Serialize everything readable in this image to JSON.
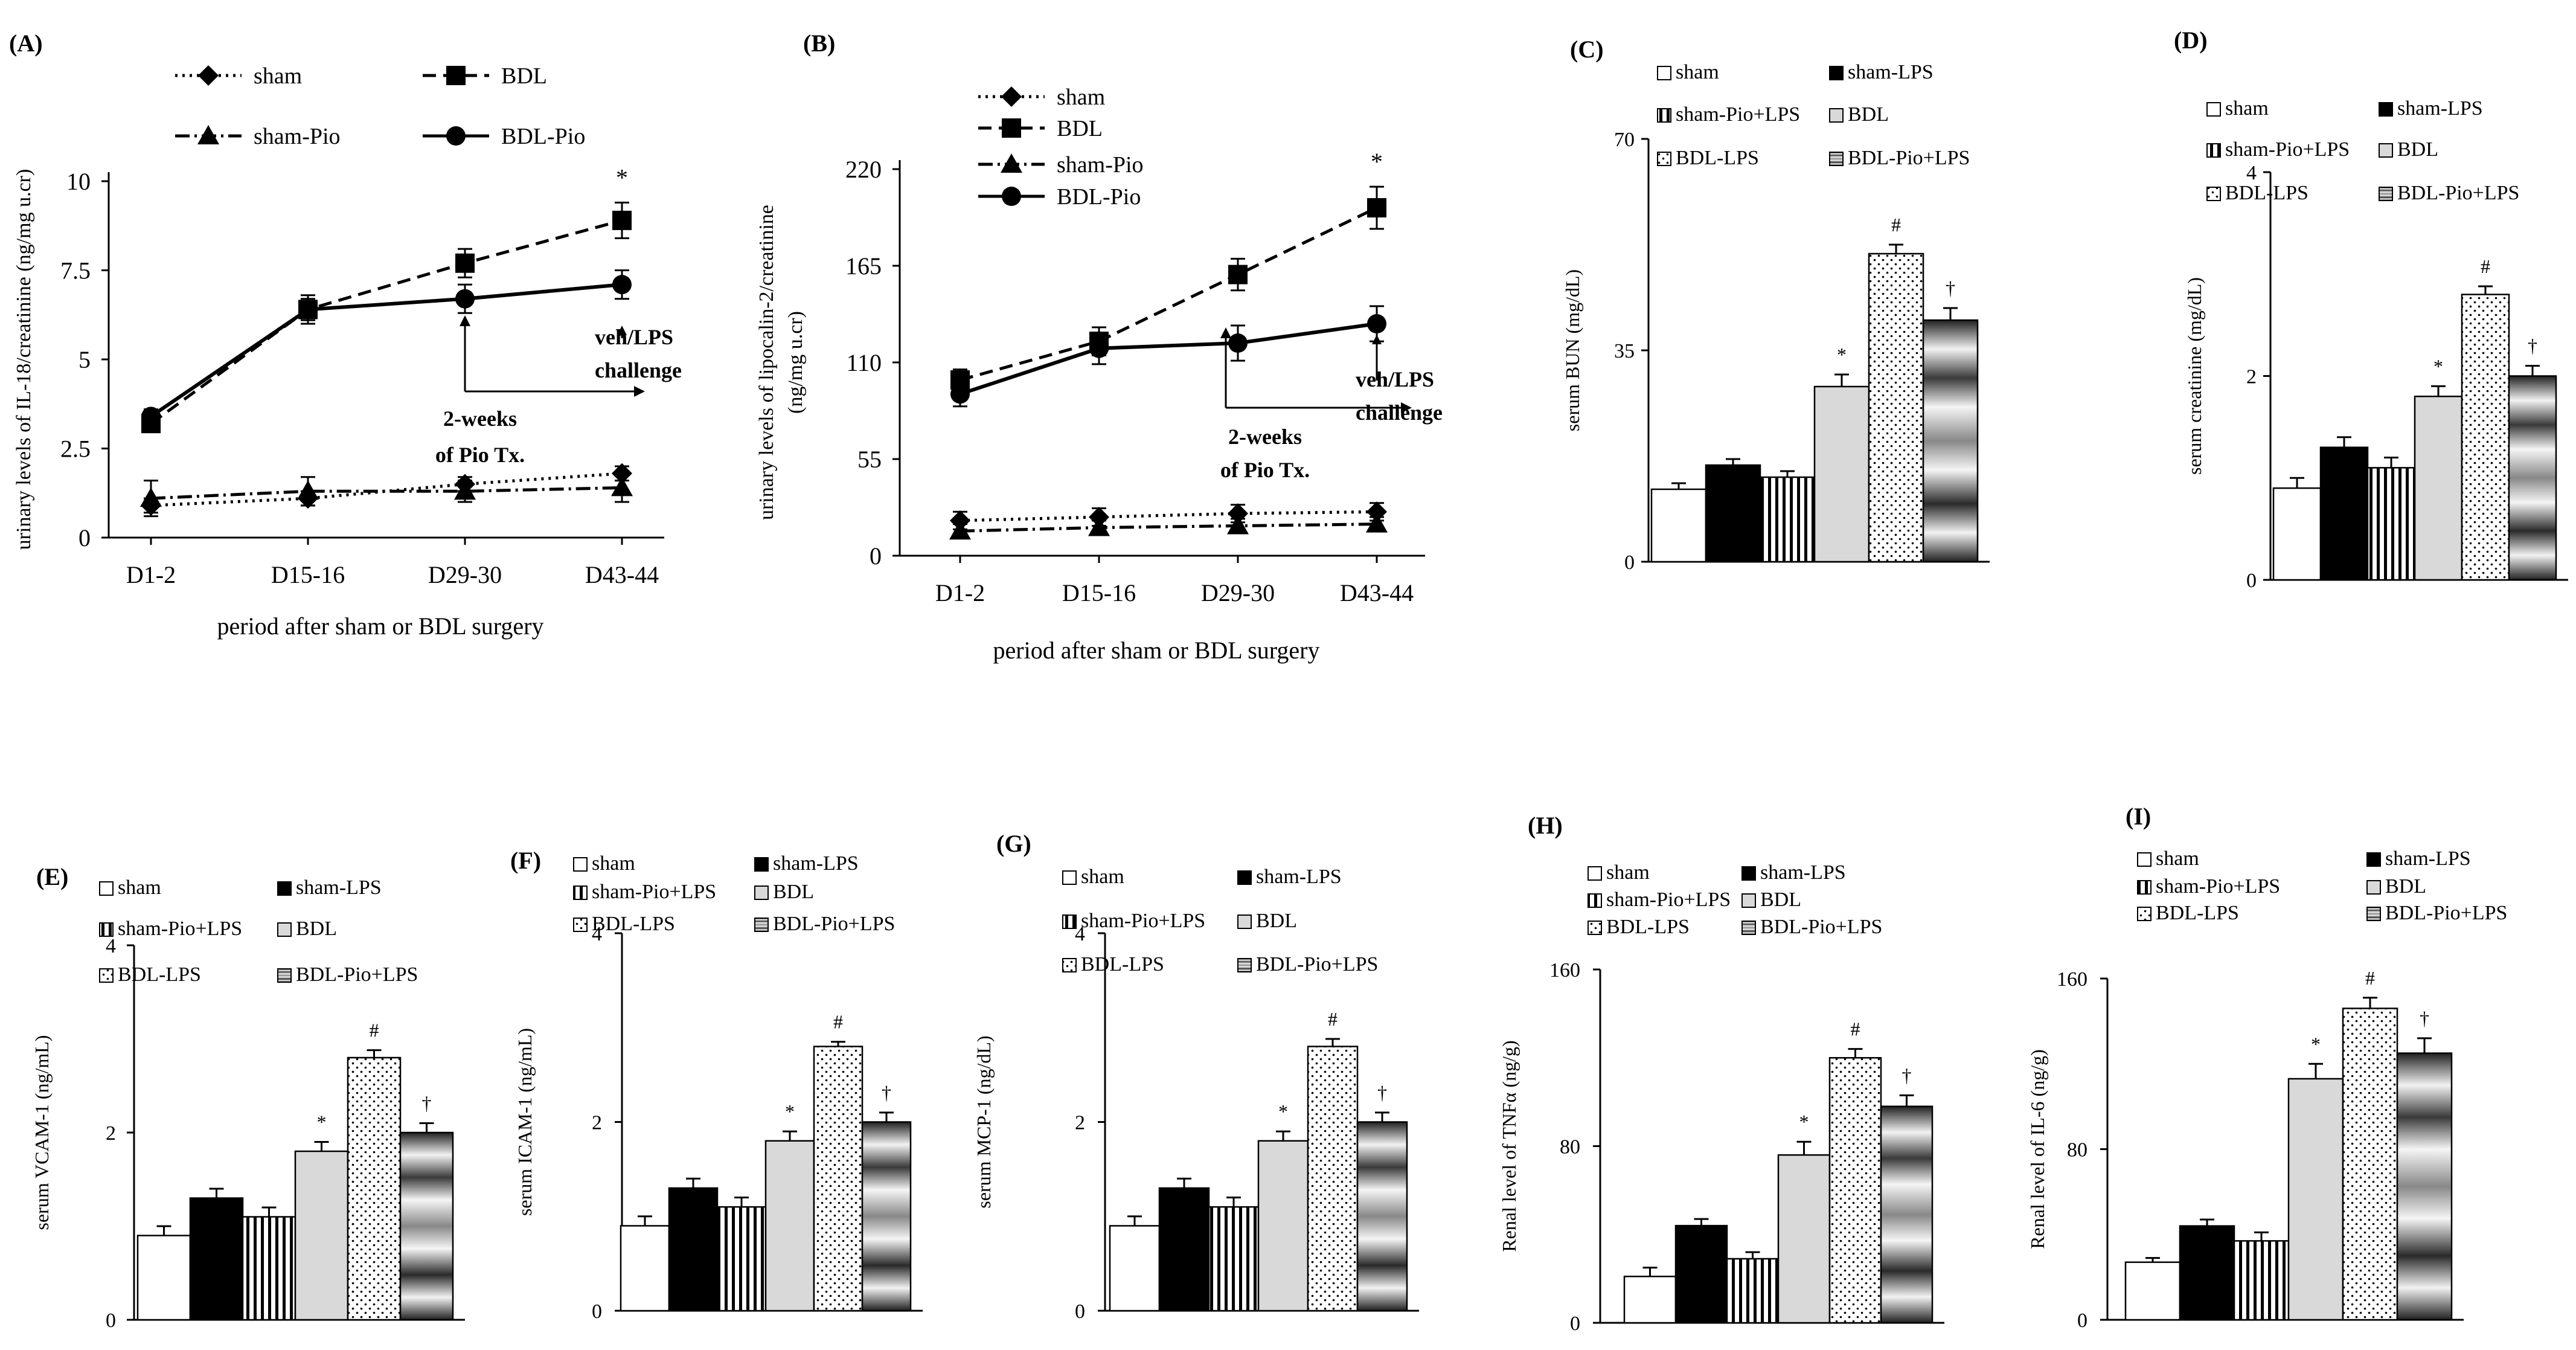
{
  "figure": "Multi-panel figure: time course of urinary markers (A,B) and serum / renal markers (C-I)",
  "patterns": {
    "sham": "white",
    "sham-LPS": "black",
    "sham-Pio+LPS": "vertical-stripes",
    "BDL": "light-gray",
    "BDL-LPS": "dots",
    "BDL-Pio+LPS": "gray-gradient-bands"
  },
  "chart_data": [
    {
      "panel": "(A)",
      "type": "line",
      "title": "",
      "xlabel": "period after sham or BDL surgery",
      "ylabel": "urinary levels of IL-18/creatinine  (ng/mg u.cr)",
      "categories": [
        "D1-2",
        "D15-16",
        "D29-30",
        "D43-44"
      ],
      "ylim": [
        0,
        10
      ],
      "yticks": [
        "0",
        "2.5",
        "5",
        "7.5",
        "10"
      ],
      "series": [
        {
          "name": "sham",
          "style": "dotted",
          "marker": "diamond",
          "values": [
            0.9,
            1.1,
            1.5,
            1.8
          ],
          "err": [
            0.2,
            0.2,
            0.2,
            0.2
          ]
        },
        {
          "name": "BDL",
          "style": "dashed",
          "marker": "square",
          "values": [
            3.2,
            6.4,
            7.7,
            8.9
          ],
          "err": [
            0.2,
            0.4,
            0.4,
            0.5
          ]
        },
        {
          "name": "sham-Pio",
          "style": "dashdot",
          "marker": "triangle",
          "values": [
            1.1,
            1.3,
            1.3,
            1.4
          ],
          "err": [
            0.5,
            0.4,
            0.3,
            0.4
          ]
        },
        {
          "name": "BDL-Pio",
          "style": "solid",
          "marker": "circle",
          "values": [
            3.4,
            6.4,
            6.7,
            7.1
          ],
          "err": [
            0.2,
            0.3,
            0.4,
            0.4
          ]
        }
      ],
      "annotations": [
        "*",
        "2-weeks",
        "of Pio Tx.",
        "veh/LPS",
        "challenge"
      ]
    },
    {
      "panel": "(B)",
      "type": "line",
      "title": "",
      "xlabel": "period after sham or BDL surgery",
      "ylabel": "urinary levels of  lipocalin-2/creatinine",
      "ylabel2": "(ng/mg u.cr)",
      "categories": [
        "D1-2",
        "D15-16",
        "D29-30",
        "D43-44"
      ],
      "ylim": [
        0,
        220
      ],
      "yticks": [
        "0",
        "55",
        "110",
        "165",
        "220"
      ],
      "series": [
        {
          "name": "sham",
          "style": "dotted",
          "marker": "diamond",
          "values": [
            20,
            22,
            24,
            25
          ],
          "err": [
            5,
            5,
            5,
            5
          ]
        },
        {
          "name": "BDL",
          "style": "dashed",
          "marker": "square",
          "values": [
            100,
            122,
            160,
            198
          ],
          "err": [
            6,
            8,
            9,
            12
          ]
        },
        {
          "name": "sham-Pio",
          "style": "dashdot",
          "marker": "triangle",
          "values": [
            14,
            16,
            17,
            18
          ],
          "err": [
            4,
            4,
            4,
            4
          ]
        },
        {
          "name": "BDL-Pio",
          "style": "solid",
          "marker": "circle",
          "values": [
            92,
            118,
            121,
            132
          ],
          "err": [
            7,
            9,
            10,
            10
          ]
        }
      ],
      "annotations": [
        "*",
        "2-weeks",
        "of Pio Tx.",
        "veh/LPS",
        "challenge"
      ]
    },
    {
      "panel": "(C)",
      "type": "bar",
      "title": "",
      "ylabel": "serum BUN  (mg/dL)",
      "ylim": [
        0,
        70
      ],
      "yticks": [
        "0",
        "35",
        "70"
      ],
      "categories": [
        "sham",
        "sham-LPS",
        "sham-Pio+LPS",
        "BDL",
        "BDL-LPS",
        "BDL-Pio+LPS"
      ],
      "legend_labels": [
        "sham",
        "sham-LPS",
        "sham-Pio+LPS",
        "BDL",
        "BDL-LPS",
        "BDL-Pio+LPS"
      ],
      "values": [
        12,
        16,
        14,
        29,
        51,
        40
      ],
      "err": [
        1,
        1,
        1,
        2,
        1.5,
        2
      ],
      "marks": [
        "",
        "",
        "",
        "*",
        "#",
        "†"
      ]
    },
    {
      "panel": "(D)",
      "type": "bar",
      "title": "",
      "ylabel": "serum creatinine  (mg/dL)",
      "ylim": [
        0,
        4
      ],
      "yticks": [
        "0",
        "2",
        "4"
      ],
      "categories": [
        "sham",
        "sham-LPS",
        "sham-Pio+LPS",
        "BDL",
        "BDL-LPS",
        "BDL-Pio+LPS"
      ],
      "legend_labels": [
        "sham",
        "sham-LPS",
        "sham-Pio+LPS",
        "BDL",
        "BDL-LPS",
        "BDL-Pio+LPS"
      ],
      "values": [
        0.9,
        1.3,
        1.1,
        1.8,
        2.8,
        2.0
      ],
      "err": [
        0.1,
        0.1,
        0.1,
        0.1,
        0.08,
        0.1
      ],
      "marks": [
        "",
        "",
        "",
        "*",
        "#",
        "†"
      ]
    },
    {
      "panel": "(E)",
      "type": "bar",
      "title": "",
      "ylabel": "serum VCAM-1 (ng/mL)",
      "ylim": [
        0,
        4
      ],
      "yticks": [
        "0",
        "2",
        "4"
      ],
      "categories": [
        "sham",
        "sham-LPS",
        "sham-Pio+LPS",
        "BDL",
        "BDL-LPS",
        "BDL-Pio+LPS"
      ],
      "legend_labels": [
        "sham",
        "sham-LPS",
        "sham-Pio+LPS",
        "BDL",
        "BDL-LPS",
        "BDL-Pio+LPS"
      ],
      "values": [
        0.9,
        1.3,
        1.1,
        1.8,
        2.8,
        2.0
      ],
      "err": [
        0.1,
        0.1,
        0.1,
        0.1,
        0.08,
        0.1
      ],
      "marks": [
        "",
        "",
        "",
        "*",
        "#",
        "†"
      ]
    },
    {
      "panel": "(F)",
      "type": "bar",
      "title": "",
      "ylabel": "serum ICAM-1 (ng/mL)",
      "ylim": [
        0,
        4
      ],
      "yticks": [
        "0",
        "2",
        "4"
      ],
      "categories": [
        "sham",
        "sham-LPS",
        "sham-Pio+LPS",
        "BDL",
        "BDL-LPS",
        "BDL-Pio+LPS"
      ],
      "legend_labels": [
        "sham",
        "sham-LPS",
        "sham-Pio+LPS",
        "BDL",
        "BDL-LPS",
        "BDL-Pio+LPS"
      ],
      "values": [
        0.9,
        1.3,
        1.1,
        1.8,
        2.8,
        2.0
      ],
      "err": [
        0.1,
        0.1,
        0.1,
        0.1,
        0.05,
        0.1
      ],
      "marks": [
        "",
        "",
        "",
        "*",
        "#",
        "†"
      ]
    },
    {
      "panel": "(G)",
      "type": "bar",
      "title": "",
      "ylabel": "serum MCP-1 (ng/dL)",
      "ylim": [
        0,
        4
      ],
      "yticks": [
        "0",
        "2",
        "4"
      ],
      "categories": [
        "sham",
        "sham-LPS",
        "sham-Pio+LPS",
        "BDL",
        "BDL-LPS",
        "BDL-Pio+LPS"
      ],
      "legend_labels": [
        "sham",
        "sham-LPS",
        "sham-Pio+LPS",
        "BDL",
        "BDL-LPS",
        "BDL-Pio+LPS"
      ],
      "values": [
        0.9,
        1.3,
        1.1,
        1.8,
        2.8,
        2.0
      ],
      "err": [
        0.1,
        0.1,
        0.1,
        0.1,
        0.08,
        0.1
      ],
      "marks": [
        "",
        "",
        "",
        "*",
        "#",
        "†"
      ]
    },
    {
      "panel": "(H)",
      "type": "bar",
      "title": "",
      "ylabel": "Renal level of TNFα (ng/g)",
      "ylim": [
        0,
        160
      ],
      "yticks": [
        "0",
        "80",
        "160"
      ],
      "categories": [
        "sham",
        "sham-LPS",
        "sham-Pio+LPS",
        "BDL",
        "BDL-LPS",
        "BDL-Pio+LPS"
      ],
      "legend_labels": [
        "sham",
        "sham-LPS",
        "sham-Pio+LPS",
        "BDL",
        "BDL-LPS",
        "BDL-Pio+LPS"
      ],
      "values": [
        21,
        44,
        29,
        76,
        120,
        98
      ],
      "err": [
        4,
        3,
        3,
        6,
        4,
        5
      ],
      "marks": [
        "",
        "",
        "",
        "*",
        "#",
        "†"
      ]
    },
    {
      "panel": "(I)",
      "type": "bar",
      "title": "",
      "ylabel": "Renal level of IL-6 (ng/g)",
      "ylim": [
        0,
        160
      ],
      "yticks": [
        "0",
        "80",
        "160"
      ],
      "categories": [
        "sham",
        "sham-LPS",
        "sham-Pio+LPS",
        "BDL",
        "BDL-LPS",
        "BDL-Pio+LPS"
      ],
      "legend_labels": [
        "sham",
        "sham-LPS",
        "sham-Pio+LPS",
        "BDL",
        "BDL-LPS",
        "BDL-Pio+LPS"
      ],
      "values": [
        27,
        44,
        37,
        113,
        146,
        125
      ],
      "err": [
        2,
        3,
        4,
        7,
        5,
        7
      ],
      "marks": [
        "",
        "",
        "",
        "*",
        "#",
        "†"
      ]
    }
  ]
}
